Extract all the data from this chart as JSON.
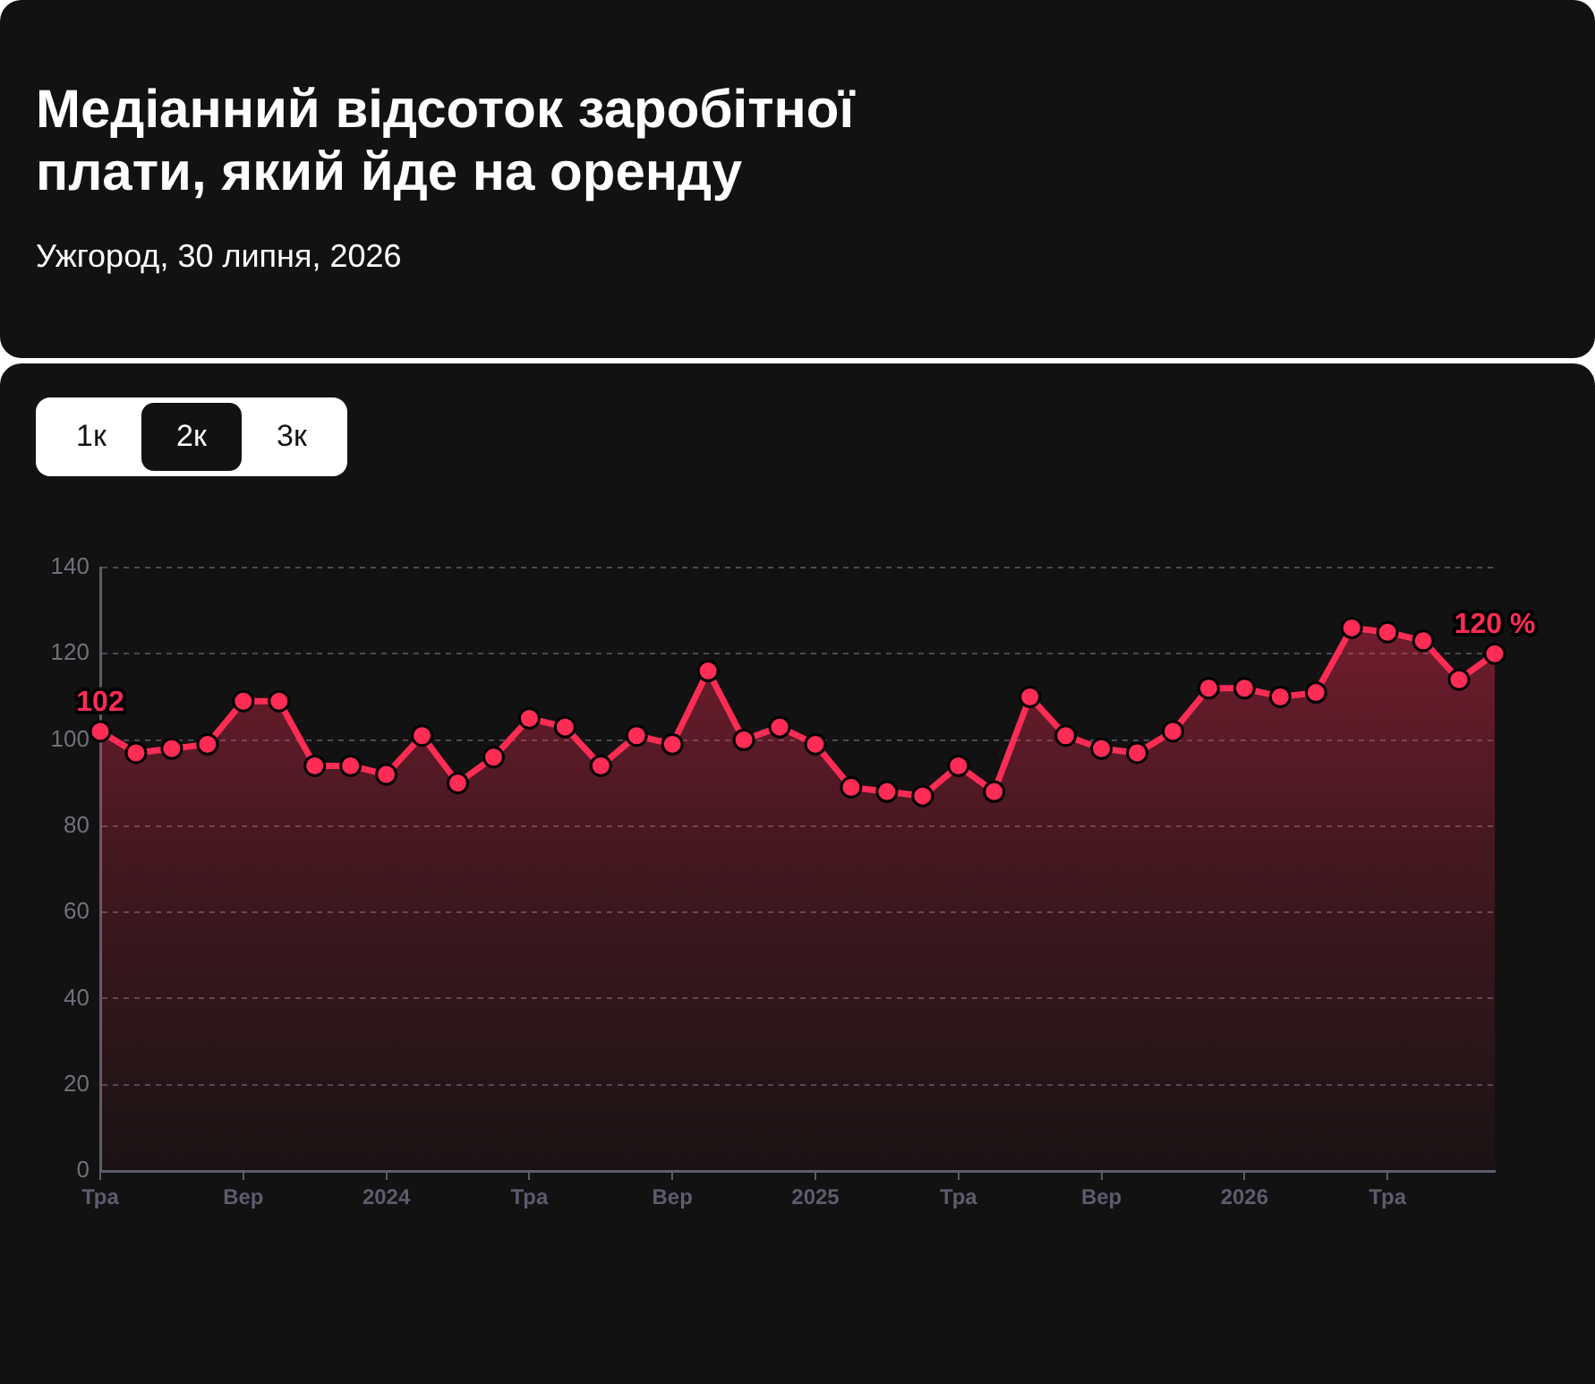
{
  "chart_data": {
    "type": "area",
    "title": "Медіанний відсоток заробітної плати, який йде на оренду",
    "subtitle": "Ужгород, 30 липня, 2026",
    "annotations": [
      "1к",
      "2к",
      "3к"
    ],
    "categories": [
      "Тра",
      null,
      null,
      null,
      "Вер",
      null,
      null,
      null,
      "2024",
      null,
      null,
      null,
      "Тра",
      null,
      null,
      null,
      "Вер",
      null,
      null,
      null,
      "2025",
      null,
      null,
      null,
      "Тра",
      null,
      null,
      null,
      "Вер",
      null,
      null,
      null,
      "2026",
      null,
      null,
      null,
      "Тра",
      null,
      null,
      null
    ],
    "values": [
      102,
      97,
      98,
      99,
      109,
      109,
      94,
      94,
      92,
      101,
      90,
      96,
      105,
      103,
      94,
      101,
      99,
      116,
      100,
      103,
      99,
      89,
      88,
      87,
      94,
      88,
      110,
      101,
      98,
      97,
      102,
      112,
      112,
      110,
      111,
      126,
      125,
      123,
      114,
      120
    ],
    "value_labels": [
      "102",
      null,
      null,
      null,
      null,
      null,
      null,
      null,
      null,
      null,
      null,
      null,
      null,
      null,
      null,
      null,
      null,
      null,
      null,
      null,
      null,
      null,
      null,
      null,
      null,
      null,
      null,
      null,
      null,
      null,
      null,
      null,
      null,
      null,
      null,
      null,
      null,
      null,
      null,
      "120 %"
    ],
    "color": "#ff2d55",
    "ylim": [
      0,
      140
    ],
    "yticks": [
      0,
      20,
      40,
      60,
      80,
      100,
      120,
      140
    ],
    "grid": "y",
    "marker": "circle",
    "line_style": "solid"
  }
}
